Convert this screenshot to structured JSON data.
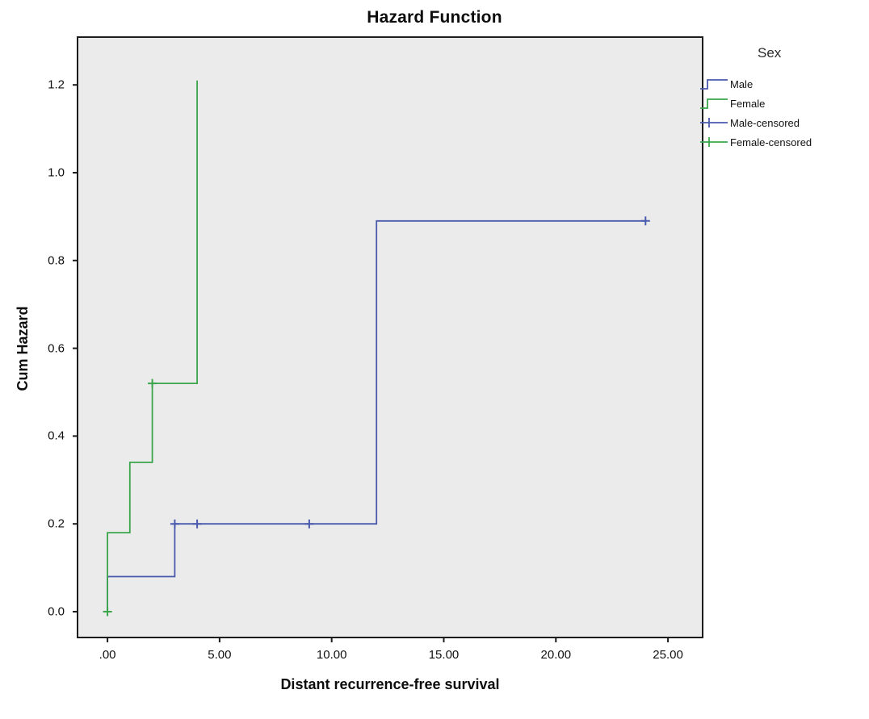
{
  "title": "Hazard Function",
  "x_axis": {
    "label": "Distant recurrence-free survival",
    "tick_labels": [
      ".00",
      "5.00",
      "10.00",
      "15.00",
      "20.00",
      "25.00"
    ],
    "tick_values": [
      0,
      5,
      10,
      15,
      20,
      25
    ],
    "range": [
      -1.3,
      26.51
    ]
  },
  "y_axis": {
    "label": "Cum Hazard",
    "tick_labels": [
      "0.0",
      "0.2",
      "0.4",
      "0.6",
      "0.8",
      "1.0",
      "1.2"
    ],
    "tick_values": [
      0,
      0.2,
      0.4,
      0.6,
      0.8,
      1.0,
      1.2
    ],
    "range": [
      -0.057,
      1.307
    ]
  },
  "legend": {
    "title": "Sex",
    "entries": [
      {
        "label": "Male",
        "color": "#4a5aad",
        "symbol": "step"
      },
      {
        "label": "Female",
        "color": "#3aa54b",
        "symbol": "step"
      },
      {
        "label": "Male-censored",
        "color": "#4a5aad",
        "symbol": "censored"
      },
      {
        "label": "Female-censored",
        "color": "#3aa54b",
        "symbol": "censored"
      }
    ]
  },
  "colors": {
    "plot_background": "#ebebeb",
    "plot_border": "#1c1c1c",
    "male": "#4a5aad",
    "female": "#3aa54b"
  },
  "chart_data": {
    "type": "line",
    "step": true,
    "title": "Hazard Function",
    "xlabel": "Distant recurrence-free survival",
    "ylabel": "Cum Hazard",
    "xlim": [
      -1.3,
      26.5
    ],
    "ylim": [
      -0.06,
      1.31
    ],
    "grid": false,
    "legend_position": "right",
    "series": [
      {
        "name": "Male",
        "color": "#4a5aad",
        "points": [
          [
            0,
            0
          ],
          [
            0,
            0.08
          ],
          [
            3,
            0.08
          ],
          [
            3,
            0.2
          ],
          [
            12,
            0.2
          ],
          [
            12,
            0.89
          ],
          [
            24,
            0.89
          ]
        ],
        "censored_points": [
          [
            3,
            0.2
          ],
          [
            4,
            0.2
          ],
          [
            9,
            0.2
          ],
          [
            24,
            0.89
          ]
        ]
      },
      {
        "name": "Female",
        "color": "#3aa54b",
        "points": [
          [
            0,
            0
          ],
          [
            0,
            0.18
          ],
          [
            1,
            0.18
          ],
          [
            1,
            0.34
          ],
          [
            2,
            0.34
          ],
          [
            2,
            0.52
          ],
          [
            4,
            0.52
          ],
          [
            4,
            1.21
          ]
        ],
        "censored_points": [
          [
            0,
            0
          ],
          [
            2,
            0.52
          ]
        ]
      }
    ]
  }
}
